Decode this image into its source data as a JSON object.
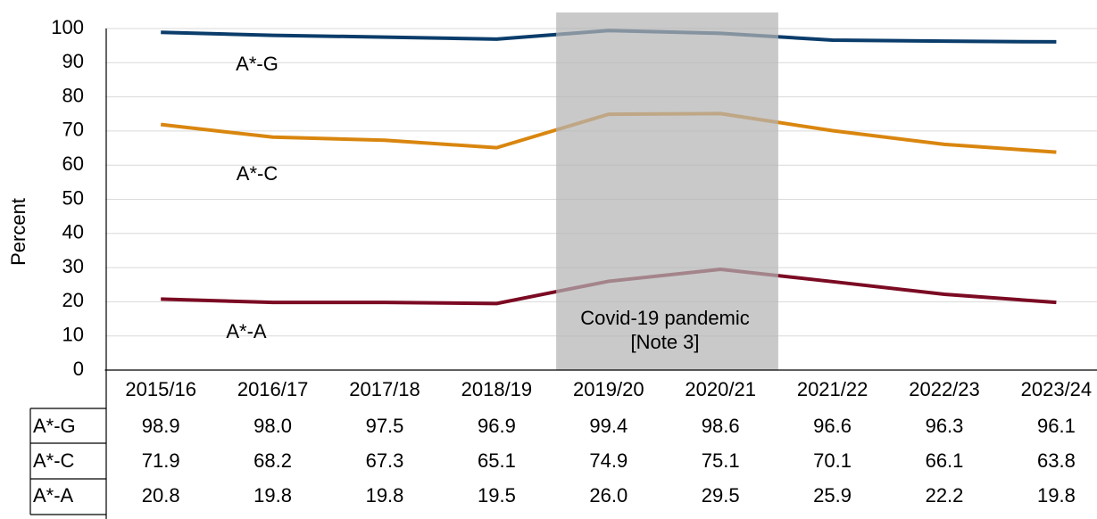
{
  "chart_data": {
    "type": "line",
    "y_label": "Percent",
    "categories": [
      "2015/16",
      "2016/17",
      "2017/18",
      "2018/19",
      "2019/20",
      "2020/21",
      "2021/22",
      "2022/23",
      "2023/24"
    ],
    "series": [
      {
        "name": "A*-G",
        "color": "#0b3d6b",
        "values": [
          98.9,
          98.0,
          97.5,
          96.9,
          99.4,
          98.6,
          96.6,
          96.3,
          96.1
        ],
        "value_labels": [
          "98.9",
          "98.0",
          "97.5",
          "96.9",
          "99.4",
          "98.6",
          "96.6",
          "96.3",
          "96.1"
        ]
      },
      {
        "name": "A*-C",
        "color": "#d9860f",
        "values": [
          71.9,
          68.2,
          67.3,
          65.1,
          74.9,
          75.1,
          70.1,
          66.1,
          63.8
        ],
        "value_labels": [
          "71.9",
          "68.2",
          "67.3",
          "65.1",
          "74.9",
          "75.1",
          "70.1",
          "66.1",
          "63.8"
        ]
      },
      {
        "name": "A*-A",
        "color": "#7b0a23",
        "values": [
          20.8,
          19.8,
          19.8,
          19.5,
          26.0,
          29.5,
          25.9,
          22.2,
          19.8
        ],
        "value_labels": [
          "20.8",
          "19.8",
          "19.8",
          "19.5",
          "26.0",
          "29.5",
          "25.9",
          "22.2",
          "19.8"
        ]
      }
    ],
    "annotation": [
      "Covid-19 pandemic",
      "[Note 3]"
    ],
    "ylim": [
      0,
      100
    ],
    "yticks": [
      0,
      10,
      20,
      30,
      40,
      50,
      60,
      70,
      80,
      90,
      100
    ],
    "grid": true
  }
}
